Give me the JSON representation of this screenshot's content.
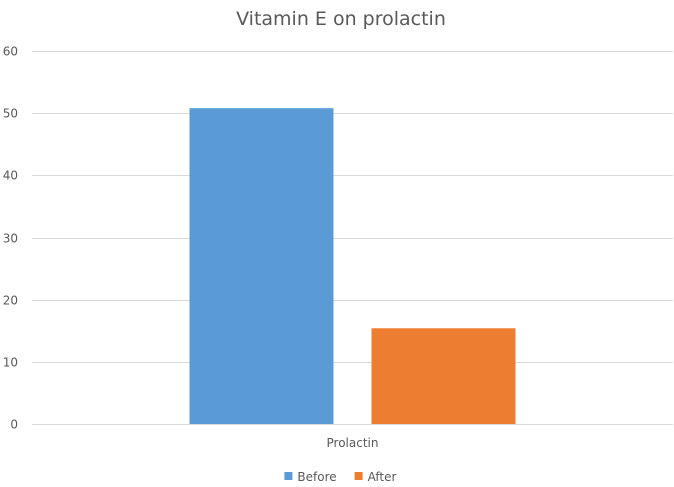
{
  "chart_data": {
    "type": "bar",
    "title": "Vitamin E on prolactin",
    "categories": [
      "Prolactin"
    ],
    "series": [
      {
        "name": "Before",
        "values": [
          50.8
        ],
        "color": "#5b9bd5"
      },
      {
        "name": "After",
        "values": [
          15.4
        ],
        "color": "#ed7d31"
      }
    ],
    "xlabel": "",
    "ylabel": "",
    "ylim": [
      0,
      60
    ],
    "yticks": [
      0,
      10,
      20,
      30,
      40,
      50,
      60
    ],
    "grid": true,
    "legend": "bottom"
  }
}
